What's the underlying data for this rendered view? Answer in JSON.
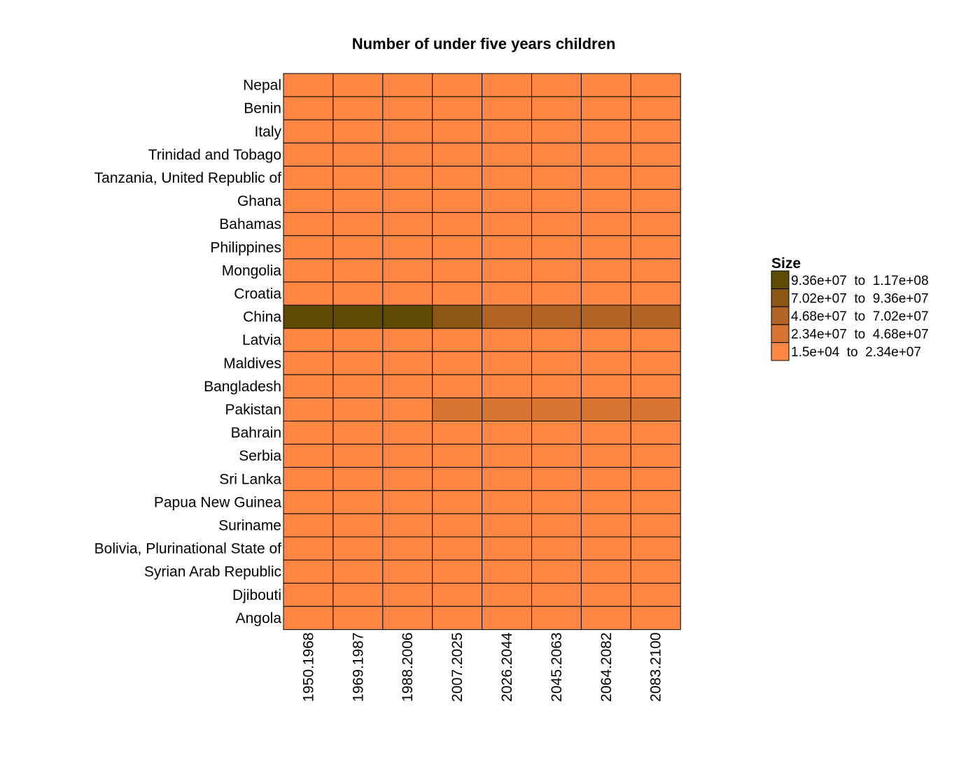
{
  "chart_data": {
    "type": "heatmap",
    "title": "Number of under five years children",
    "xlabel": "",
    "ylabel": "",
    "categories_x": [
      "1950.1968",
      "1969.1987",
      "1988.2006",
      "2007.2025",
      "2026.2044",
      "2045.2063",
      "2064.2082",
      "2083.2100"
    ],
    "categories_y": [
      "Nepal",
      "Benin",
      "Italy",
      "Trinidad and Tobago",
      "Tanzania, United Republic of",
      "Ghana",
      "Bahamas",
      "Philippines",
      "Mongolia",
      "Croatia",
      "China",
      "Latvia",
      "Maldives",
      "Bangladesh",
      "Pakistan",
      "Bahrain",
      "Serbia",
      "Sri Lanka",
      "Papua New Guinea",
      "Suriname",
      "Bolivia, Plurinational State of",
      "Syrian Arab Republic",
      "Djibouti",
      "Angola"
    ],
    "bins": [
      {
        "label": "9.36e+07  to  1.17e+08",
        "color": "#5e4a03"
      },
      {
        "label": "7.02e+07  to  9.36e+07",
        "color": "#8b5713"
      },
      {
        "label": "4.68e+07  to  7.02e+07",
        "color": "#b16424"
      },
      {
        "label": "2.34e+07  to  4.68e+07",
        "color": "#d87532"
      },
      {
        "label": "1.5e+04  to  2.34e+07",
        "color": "#ff8743"
      }
    ],
    "cell_bins": [
      [
        4,
        4,
        4,
        4,
        4,
        4,
        4,
        4
      ],
      [
        4,
        4,
        4,
        4,
        4,
        4,
        4,
        4
      ],
      [
        4,
        4,
        4,
        4,
        4,
        4,
        4,
        4
      ],
      [
        4,
        4,
        4,
        4,
        4,
        4,
        4,
        4
      ],
      [
        4,
        4,
        4,
        4,
        4,
        4,
        4,
        4
      ],
      [
        4,
        4,
        4,
        4,
        4,
        4,
        4,
        4
      ],
      [
        4,
        4,
        4,
        4,
        4,
        4,
        4,
        4
      ],
      [
        4,
        4,
        4,
        4,
        4,
        4,
        4,
        4
      ],
      [
        4,
        4,
        4,
        4,
        4,
        4,
        4,
        4
      ],
      [
        4,
        4,
        4,
        4,
        4,
        4,
        4,
        4
      ],
      [
        0,
        0,
        0,
        1,
        2,
        2,
        2,
        2
      ],
      [
        4,
        4,
        4,
        4,
        4,
        4,
        4,
        4
      ],
      [
        4,
        4,
        4,
        4,
        4,
        4,
        4,
        4
      ],
      [
        4,
        4,
        4,
        4,
        4,
        4,
        4,
        4
      ],
      [
        4,
        4,
        4,
        3,
        3,
        3,
        3,
        3
      ],
      [
        4,
        4,
        4,
        4,
        4,
        4,
        4,
        4
      ],
      [
        4,
        4,
        4,
        4,
        4,
        4,
        4,
        4
      ],
      [
        4,
        4,
        4,
        4,
        4,
        4,
        4,
        4
      ],
      [
        4,
        4,
        4,
        4,
        4,
        4,
        4,
        4
      ],
      [
        4,
        4,
        4,
        4,
        4,
        4,
        4,
        4
      ],
      [
        4,
        4,
        4,
        4,
        4,
        4,
        4,
        4
      ],
      [
        4,
        4,
        4,
        4,
        4,
        4,
        4,
        4
      ],
      [
        4,
        4,
        4,
        4,
        4,
        4,
        4,
        4
      ],
      [
        4,
        4,
        4,
        4,
        4,
        4,
        4,
        4
      ]
    ],
    "legend": {
      "title": "Size",
      "position": "right"
    },
    "grid": false
  }
}
